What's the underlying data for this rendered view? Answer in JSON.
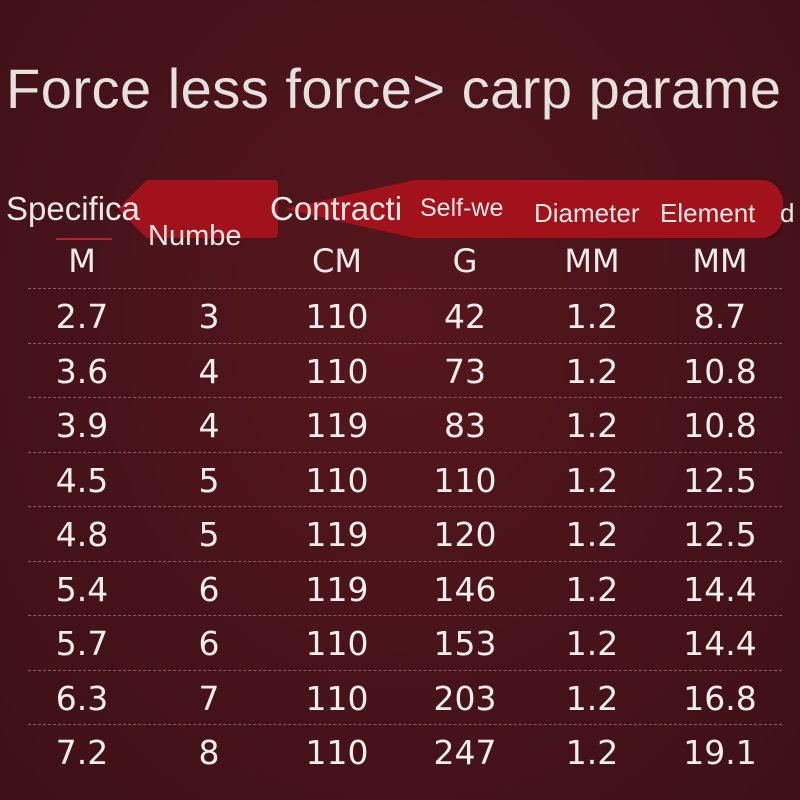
{
  "title": "Force less force> carp parame",
  "headers": {
    "specification": "Specifica",
    "number": "Numbe",
    "contraction": "Contracti",
    "self_weight": "Self-we",
    "diameter": "Diameter",
    "element": "Element",
    "element_tail": "d"
  },
  "units": {
    "specification": "M",
    "contraction": "CM",
    "self_weight": "G",
    "diameter": "MM",
    "element": "MM"
  },
  "rows": [
    [
      "2.7",
      "3",
      "110",
      "42",
      "1.2",
      "8.7"
    ],
    [
      "3.6",
      "4",
      "110",
      "73",
      "1.2",
      "10.8"
    ],
    [
      "3.9",
      "4",
      "119",
      "83",
      "1.2",
      "10.8"
    ],
    [
      "4.5",
      "5",
      "110",
      "110",
      "1.2",
      "12.5"
    ],
    [
      "4.8",
      "5",
      "119",
      "120",
      "1.2",
      "12.5"
    ],
    [
      "5.4",
      "6",
      "119",
      "146",
      "1.2",
      "14.4"
    ],
    [
      "5.7",
      "6",
      "110",
      "153",
      "1.2",
      "14.4"
    ],
    [
      "6.3",
      "7",
      "110",
      "203",
      "1.2",
      "16.8"
    ],
    [
      "7.2",
      "8",
      "110",
      "247",
      "1.2",
      "19.1"
    ]
  ],
  "colors": {
    "background": "#4a1418",
    "banner": "#a2121a",
    "text": "#f3ecea"
  }
}
